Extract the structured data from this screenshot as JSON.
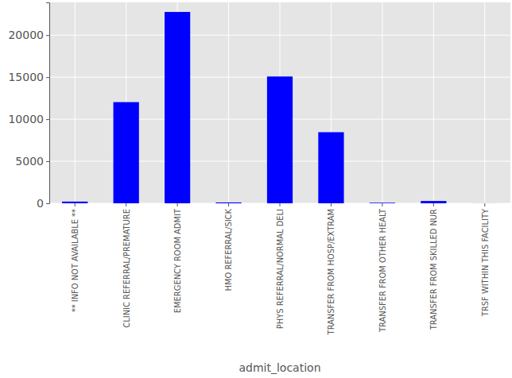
{
  "chart_data": {
    "type": "bar",
    "x_label": "admit_location",
    "categories": [
      "** INFO NOT AVAILABLE **",
      "CLINIC REFERRAL/PREMATURE",
      "EMERGENCY ROOM ADMIT",
      "HMO REFERRAL/SICK",
      "PHYS REFERRAL/NORMAL DELI",
      "TRANSFER FROM HOSP/EXTRAM",
      "TRANSFER FROM OTHER HEALT",
      "TRANSFER FROM SKILLED NUR",
      "TRSF WITHIN THIS FACILITY"
    ],
    "values": [
      204,
      12032,
      22754,
      102,
      15079,
      8456,
      71,
      273,
      5
    ],
    "color": "#0000ff",
    "ylim": [
      0,
      23892
    ],
    "yticks": [
      0,
      5000,
      10000,
      15000,
      20000
    ],
    "grid": true
  }
}
